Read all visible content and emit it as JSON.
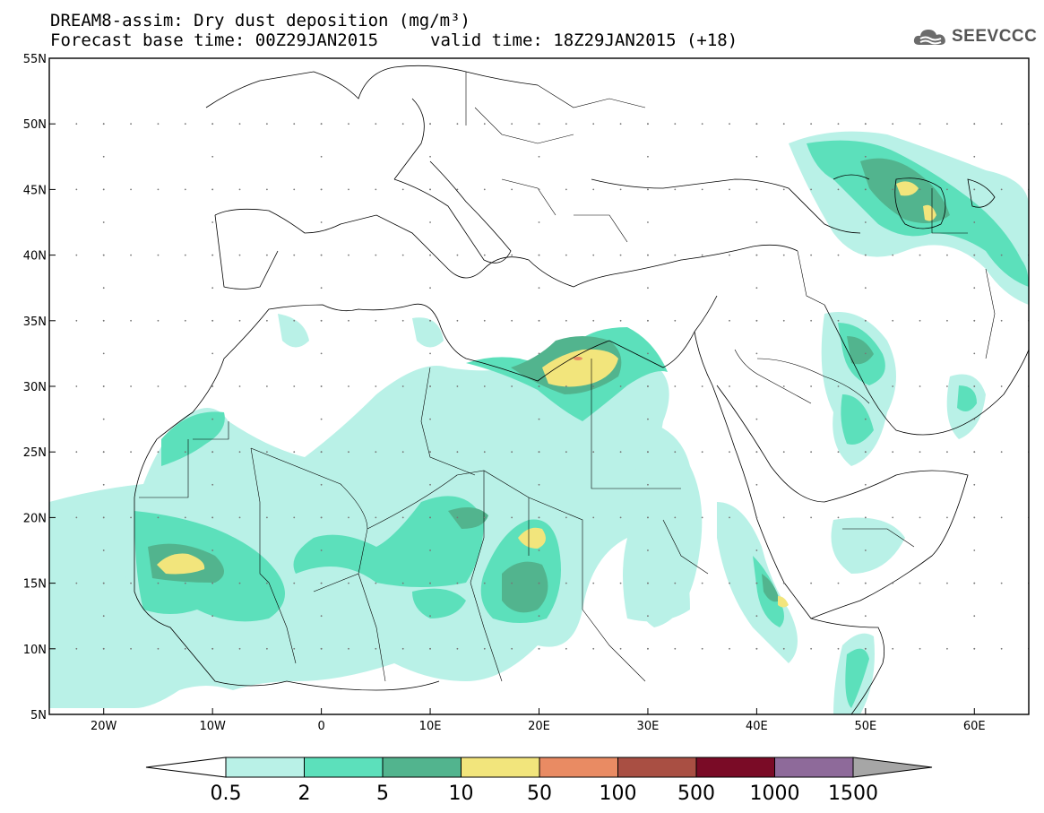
{
  "header": {
    "title_line1": "DREAM8-assim: Dry dust deposition (mg/m³)",
    "title_line2": "Forecast base time: 00Z29JAN2015",
    "title_line2b": "valid time: 18Z29JAN2015 (+18)",
    "logo_text": "SEEVCCC"
  },
  "map": {
    "lat_labels": [
      "55N",
      "50N",
      "45N",
      "40N",
      "35N",
      "30N",
      "25N",
      "20N",
      "15N",
      "10N",
      "5N"
    ],
    "lon_labels": [
      "20W",
      "10W",
      "0",
      "10E",
      "20E",
      "30E",
      "40E",
      "50E",
      "60E"
    ],
    "lon_range": [
      -25,
      65
    ],
    "lat_range": [
      5,
      55
    ]
  },
  "legend": {
    "levels": [
      "0.5",
      "2",
      "5",
      "10",
      "50",
      "100",
      "500",
      "1000",
      "1500"
    ],
    "colors": [
      "#b9f1e7",
      "#5ce0bb",
      "#52b48e",
      "#f2e57c",
      "#e98b63",
      "#a94f43",
      "#7a0b26",
      "#8e6a9a"
    ],
    "below_color": "#ffffff",
    "above_color": "#a6a6a6"
  }
}
